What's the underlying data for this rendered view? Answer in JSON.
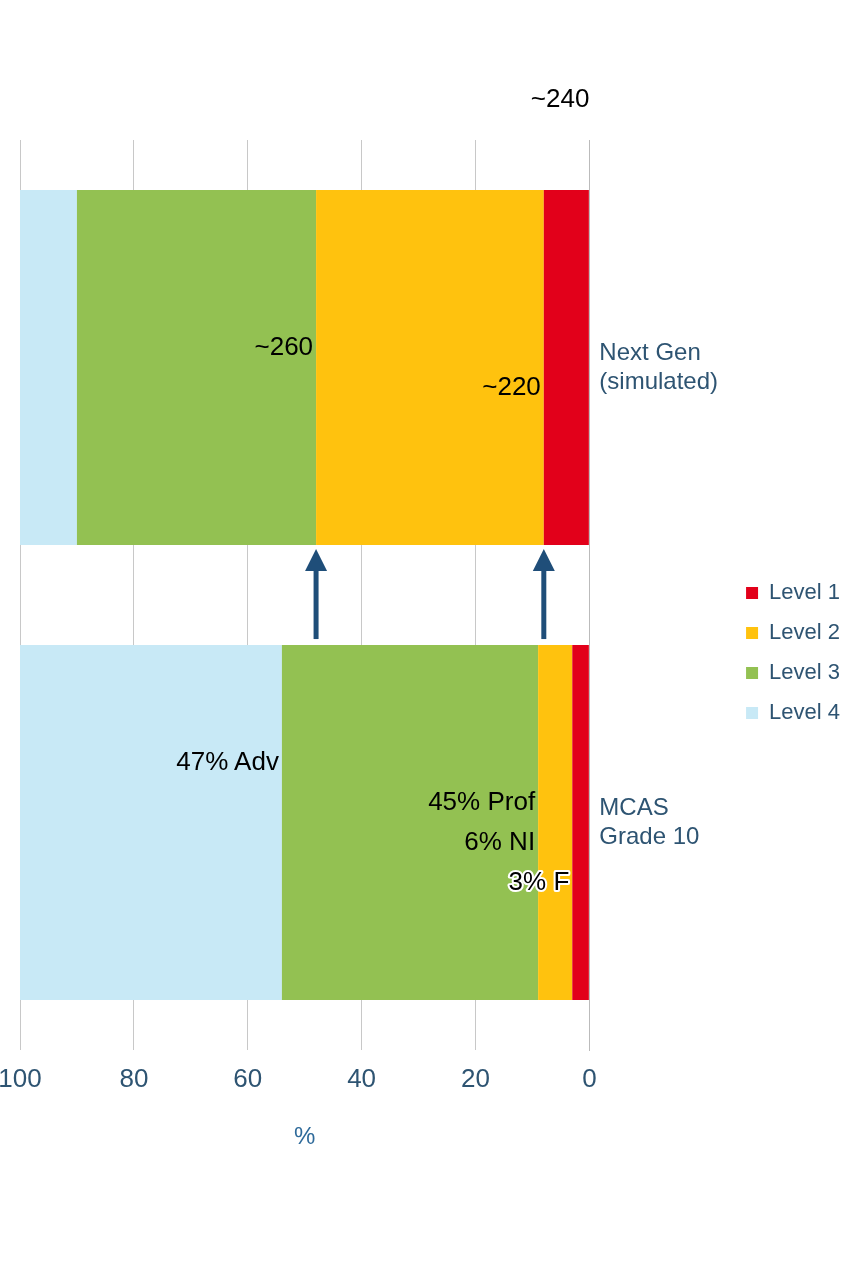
{
  "chart_data": {
    "type": "bar",
    "stacked": true,
    "orientation": "horizontal",
    "categories": [
      "Next Gen (simulated)",
      "MCAS Grade 10"
    ],
    "series": [
      {
        "name": "Level 1",
        "color": "#e2001a",
        "values": [
          8,
          3
        ]
      },
      {
        "name": "Level 2",
        "color": "#ffc20e",
        "values": [
          40,
          6
        ]
      },
      {
        "name": "Level 3",
        "color": "#93c152",
        "values": [
          42,
          45
        ]
      },
      {
        "name": "Level 4",
        "color": "#c8e9f6",
        "values": [
          10,
          46
        ]
      }
    ],
    "xlabel": "%",
    "xlim": [
      100,
      0
    ],
    "xticks": [
      0,
      20,
      40,
      60,
      80,
      100
    ],
    "grid": "x",
    "legend": "right",
    "annotations": [
      {
        "text": "~260",
        "x": 48,
        "y": "Next Gen (simulated)"
      },
      "~240",
      {
        "text": "~220",
        "x": 8,
        "y": "Next Gen (simulated)"
      },
      {
        "text": "47% Adv",
        "x": 54,
        "y": "MCAS Grade 10"
      },
      {
        "text": "45% Prof",
        "x": 9,
        "y": "MCAS Grade 10"
      },
      {
        "text": "6% NI",
        "x": 9,
        "y": "MCAS Grade 10"
      },
      {
        "text": "3% F",
        "x": 3,
        "y": "MCAS Grade 10"
      }
    ]
  }
}
